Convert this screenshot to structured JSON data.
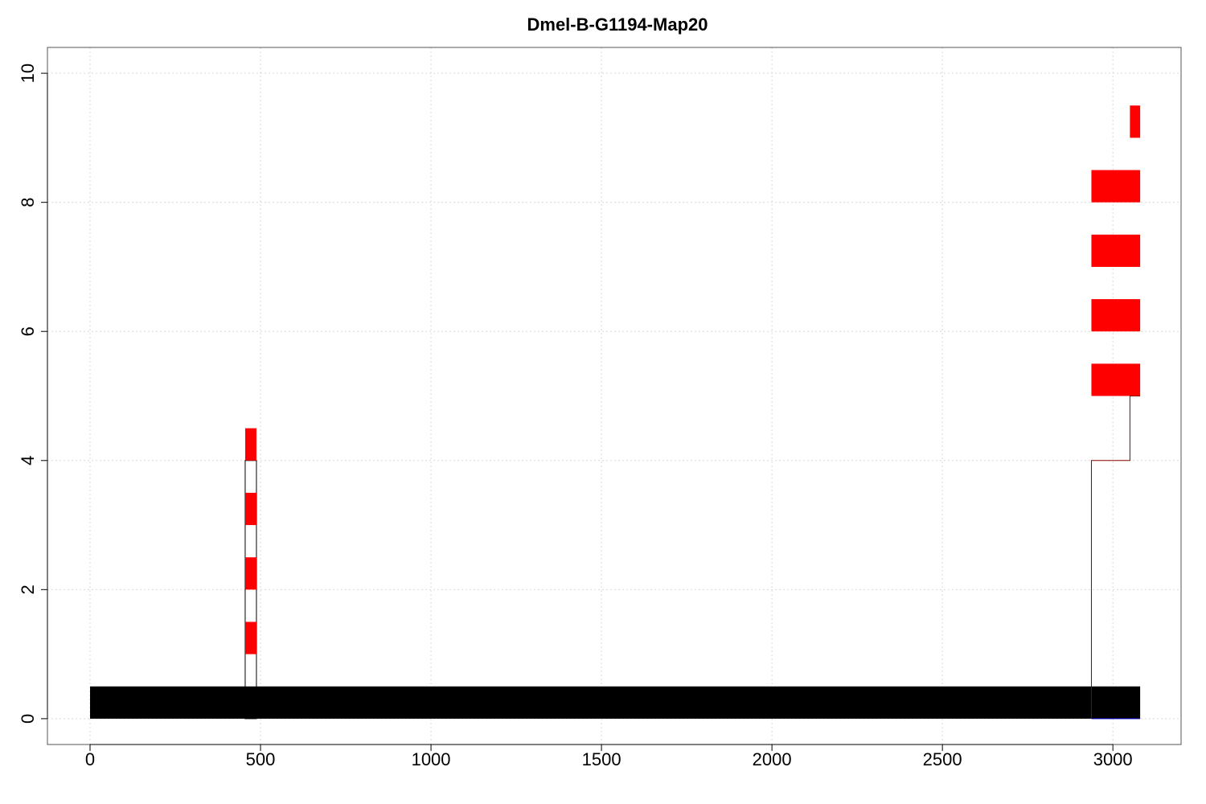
{
  "chart_data": {
    "type": "bar",
    "title": "Dmel-B-G1194-Map20",
    "xlabel": "",
    "ylabel": "",
    "xlim": [
      -125,
      3200
    ],
    "ylim": [
      -0.4,
      10.4
    ],
    "x_ticks": [
      0,
      500,
      1000,
      1500,
      2000,
      2500,
      3000
    ],
    "x_tick_labels": [
      "0",
      "500",
      "1000",
      "1500",
      "2000",
      "2500",
      "3000"
    ],
    "y_ticks": [
      0,
      2,
      4,
      6,
      8,
      10
    ],
    "y_tick_labels": [
      "0",
      "2",
      "4",
      "6",
      "8",
      "10"
    ],
    "grid": true,
    "colors": {
      "reference": "#000000",
      "match": "#ff0000",
      "outline": "#000000",
      "step": "#8b0000",
      "baseline": "#0000cd"
    },
    "reference_segment": {
      "x_start": 0,
      "x_end": 3080,
      "y_bottom": 0,
      "y_top": 0.5
    },
    "match_segments": [
      {
        "x_start": 455,
        "x_end": 488,
        "y_bottom": 1,
        "y_top": 1.5
      },
      {
        "x_start": 455,
        "x_end": 488,
        "y_bottom": 2,
        "y_top": 2.5
      },
      {
        "x_start": 455,
        "x_end": 488,
        "y_bottom": 3,
        "y_top": 3.5
      },
      {
        "x_start": 455,
        "x_end": 488,
        "y_bottom": 4,
        "y_top": 4.5
      },
      {
        "x_start": 2937,
        "x_end": 3080,
        "y_bottom": 5,
        "y_top": 5.5
      },
      {
        "x_start": 2937,
        "x_end": 3080,
        "y_bottom": 6,
        "y_top": 6.5
      },
      {
        "x_start": 2937,
        "x_end": 3080,
        "y_bottom": 7,
        "y_top": 7.5
      },
      {
        "x_start": 2937,
        "x_end": 3080,
        "y_bottom": 8,
        "y_top": 8.5
      },
      {
        "x_start": 3050,
        "x_end": 3080,
        "y_bottom": 9,
        "y_top": 9.5
      }
    ],
    "outline_boxes": [
      {
        "x_start": 455,
        "x_end": 488,
        "y_bottom": 0,
        "y_top": 4
      }
    ],
    "step_lines": [
      {
        "points": [
          [
            2937,
            0
          ],
          [
            2937,
            4
          ],
          [
            3050,
            4
          ],
          [
            3050,
            5
          ],
          [
            3080,
            5
          ]
        ]
      }
    ]
  }
}
